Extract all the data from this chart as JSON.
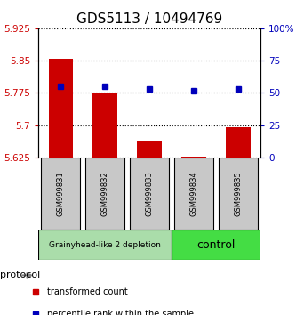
{
  "title": "GDS5113 / 10494769",
  "samples": [
    "GSM999831",
    "GSM999832",
    "GSM999833",
    "GSM999834",
    "GSM999835"
  ],
  "transformed_count": [
    5.855,
    5.775,
    5.663,
    5.627,
    5.695
  ],
  "percentile_rank": [
    55,
    55,
    53,
    52,
    53
  ],
  "y_min": 5.625,
  "y_max": 5.925,
  "y_ticks": [
    5.625,
    5.7,
    5.775,
    5.85,
    5.925
  ],
  "y2_ticks": [
    0,
    25,
    50,
    75,
    100
  ],
  "y2_tick_labels": [
    "0",
    "25",
    "50",
    "75",
    "100%"
  ],
  "bar_color": "#cc0000",
  "marker_color": "#0000bb",
  "groups": [
    {
      "label": "Grainyhead-like 2 depletion",
      "indices": [
        0,
        1,
        2
      ],
      "color": "#aaddaa",
      "fontsize": 6.5
    },
    {
      "label": "control",
      "indices": [
        3,
        4
      ],
      "color": "#44dd44",
      "fontsize": 9
    }
  ],
  "protocol_label": "protocol",
  "legend_items": [
    {
      "color": "#cc0000",
      "label": "transformed count"
    },
    {
      "color": "#0000bb",
      "label": "percentile rank within the sample"
    }
  ],
  "grid_color": "black",
  "sample_box_color": "#c8c8c8",
  "background_color": "white",
  "title_fontsize": 11,
  "left_tick_color": "#cc0000",
  "right_tick_color": "#0000bb"
}
